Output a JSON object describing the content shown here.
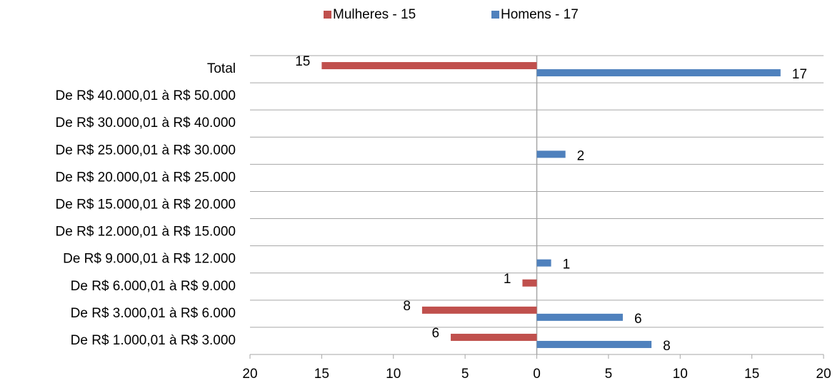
{
  "chart_data": {
    "type": "diverging-bar",
    "categories": [
      "Total",
      "De R$ 40.000,01 à R$ 50.000",
      "De R$ 30.000,01 à R$ 40.000",
      "De R$ 25.000,01 à R$ 30.000",
      "De R$ 20.000,01 à R$ 25.000",
      "De R$ 15.000,01 à R$ 20.000",
      "De R$ 12.000,01 à R$ 15.000",
      "De R$ 9.000,01 à R$ 12.000",
      "De R$ 6.000,01 à R$ 9.000",
      "De R$ 3.000,01 à R$ 6.000",
      "De R$ 1.000,01 à R$ 3.000"
    ],
    "series": [
      {
        "name": "Mulheres - 15",
        "color": "#c0504d",
        "values": [
          -15,
          null,
          null,
          null,
          null,
          null,
          null,
          null,
          -1,
          -8,
          -6
        ],
        "value_labels": [
          "15",
          null,
          null,
          null,
          null,
          null,
          null,
          null,
          "1",
          "8",
          "6"
        ]
      },
      {
        "name": "Homens - 17",
        "color": "#4f81bd",
        "values": [
          17,
          null,
          null,
          2,
          null,
          null,
          null,
          1,
          null,
          6,
          8
        ]
      }
    ],
    "xlim": [
      -20,
      20
    ],
    "xticks": [
      {
        "value": -20,
        "label": "20"
      },
      {
        "value": -15,
        "label": "15"
      },
      {
        "value": -10,
        "label": "10"
      },
      {
        "value": -5,
        "label": "5"
      },
      0,
      5,
      10,
      15,
      20
    ],
    "legend": "top"
  }
}
